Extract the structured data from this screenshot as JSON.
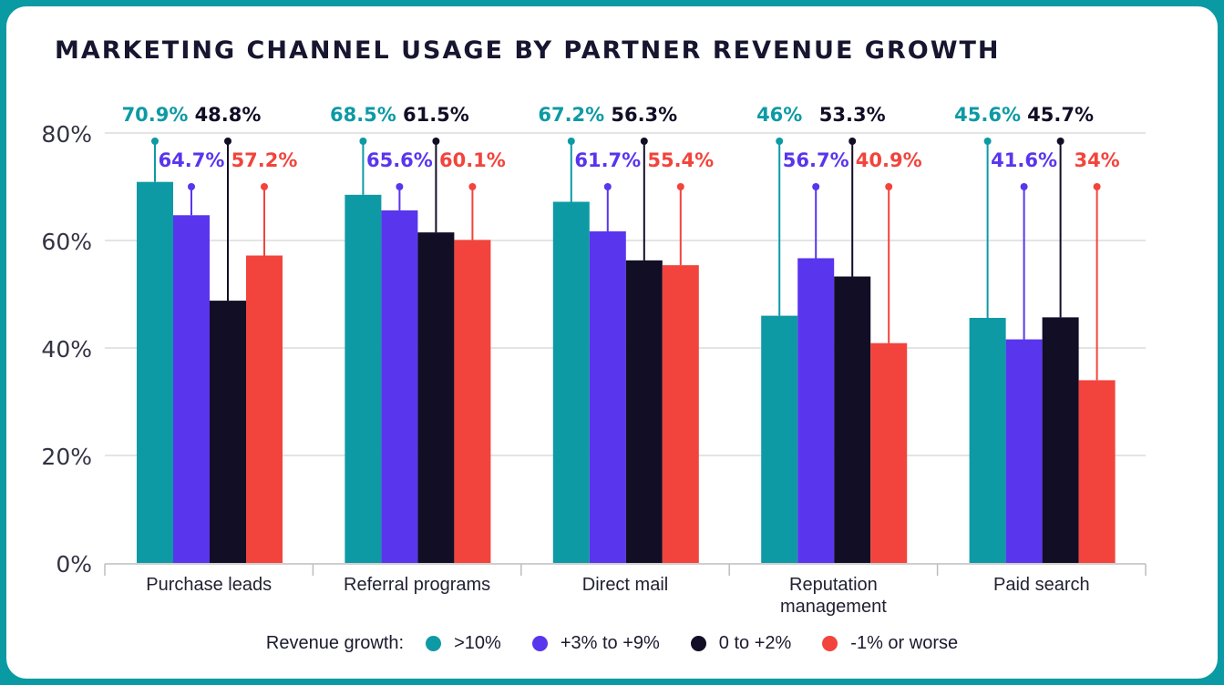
{
  "chart_data": {
    "type": "bar",
    "title": "MARKETING CHANNEL USAGE BY PARTNER REVENUE GROWTH",
    "categories": [
      "Purchase leads",
      "Referral programs",
      "Direct mail",
      "Reputation management",
      "Paid search"
    ],
    "category_lines": [
      [
        "Purchase leads"
      ],
      [
        "Referral programs"
      ],
      [
        "Direct mail"
      ],
      [
        "Reputation",
        "management"
      ],
      [
        "Paid search"
      ]
    ],
    "series": [
      {
        "name": ">10%",
        "color": "#0d9aa5",
        "values": [
          70.9,
          68.5,
          67.2,
          46,
          45.6
        ],
        "labels": [
          "70.9%",
          "68.5%",
          "67.2%",
          "46%",
          "45.6%"
        ]
      },
      {
        "name": "+3% to +9%",
        "color": "#5a35ee",
        "values": [
          64.7,
          65.6,
          61.7,
          56.7,
          41.6
        ],
        "labels": [
          "64.7%",
          "65.6%",
          "61.7%",
          "56.7%",
          "41.6%"
        ]
      },
      {
        "name": "0 to +2%",
        "color": "#110e26",
        "values": [
          48.8,
          61.5,
          56.3,
          53.3,
          45.7
        ],
        "labels": [
          "48.8%",
          "61.5%",
          "56.3%",
          "53.3%",
          "45.7%"
        ]
      },
      {
        "name": "-1% or worse",
        "color": "#f2443c",
        "values": [
          57.2,
          60.1,
          55.4,
          40.9,
          34
        ],
        "labels": [
          "57.2%",
          "60.1%",
          "55.4%",
          "40.9%",
          "34%"
        ]
      }
    ],
    "ylim": [
      0,
      80
    ],
    "yticks": [
      0,
      20,
      40,
      60,
      80
    ],
    "ytick_labels": [
      "0%",
      "20%",
      "40%",
      "60%",
      "80%"
    ],
    "grid": true,
    "legend": {
      "title": "Revenue growth:",
      "position": "bottom-center"
    }
  }
}
